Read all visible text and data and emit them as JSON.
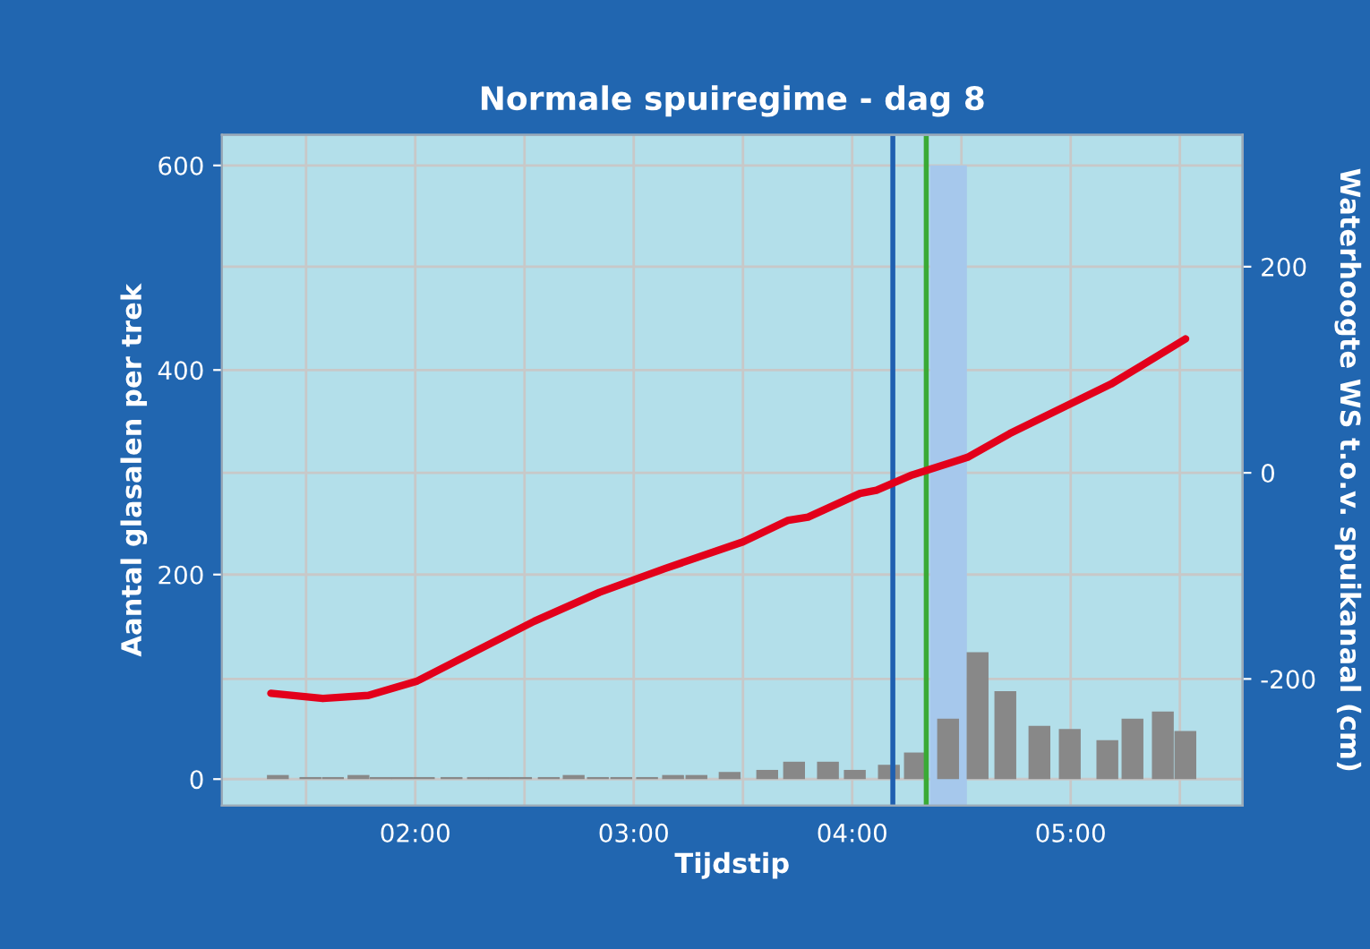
{
  "chart_data": {
    "type": "bar",
    "title": "Normale spuiregime - dag 8",
    "xlabel": "Tijdstip",
    "ylabel": "Aantal glasalen per trek",
    "y2label": "Waterhoogte WS t.o.v. spuikanaal (cm)",
    "xlim": [
      1.115,
      5.787
    ],
    "xticks": [
      {
        "value": 1.5,
        "label": null
      },
      {
        "value": 2,
        "label": "02:00"
      },
      {
        "value": 2.5,
        "label": null
      },
      {
        "value": 3,
        "label": "03:00"
      },
      {
        "value": 3.5,
        "label": null
      },
      {
        "value": 4,
        "label": "04:00"
      },
      {
        "value": 4.5,
        "label": null
      },
      {
        "value": 5,
        "label": "05:00"
      },
      {
        "value": 5.5,
        "label": null
      }
    ],
    "ylim": [
      -26,
      630
    ],
    "yticks": [
      0,
      200,
      400,
      600
    ],
    "y2lim": [
      -323,
      328
    ],
    "y2ticks": [
      -200,
      0,
      200
    ],
    "grid": true,
    "series": [
      {
        "color": "#888888",
        "x": [
          1.371,
          1.52,
          1.623,
          1.74,
          1.842,
          1.94,
          2.039,
          2.166,
          2.287,
          2.385,
          2.484,
          2.611,
          2.725,
          2.836,
          2.943,
          3.061,
          3.18,
          3.287,
          3.439,
          3.611,
          3.734,
          3.889,
          4.012,
          4.168,
          4.287,
          4.439,
          4.574,
          4.701,
          4.857,
          4.996,
          5.168,
          5.283,
          5.422,
          5.525
        ],
        "values": [
          4,
          2,
          2,
          4,
          2,
          2,
          2,
          2,
          2,
          2,
          2,
          2,
          4,
          2,
          2,
          2,
          4,
          4,
          7,
          9,
          17,
          17,
          9,
          14,
          26,
          59,
          124,
          86,
          52,
          49,
          38,
          59,
          66,
          47
        ]
      },
      {
        "type": "line",
        "axis": "y2",
        "color": "#e3001b",
        "x": [
          1.339,
          1.577,
          1.785,
          2.009,
          2.545,
          2.843,
          3.142,
          3.5,
          3.708,
          3.798,
          4.036,
          4.111,
          4.275,
          4.528,
          4.721,
          5.184,
          5.526
        ],
        "values": [
          -214,
          -219,
          -216,
          -202,
          -144,
          -116,
          -93,
          -67,
          -46,
          -43,
          -20,
          -17,
          -2,
          15,
          38,
          86,
          130
        ]
      }
    ],
    "ref_lines": [
      {
        "axis": "x",
        "value": 4.186,
        "color": "#1f5fb0"
      },
      {
        "axis": "x",
        "value": 4.339,
        "color": "#3aaa35"
      }
    ],
    "bands": [
      {
        "axis": "x",
        "from": 4.356,
        "to": 4.525,
        "color": "#a6c8ec"
      }
    ]
  }
}
